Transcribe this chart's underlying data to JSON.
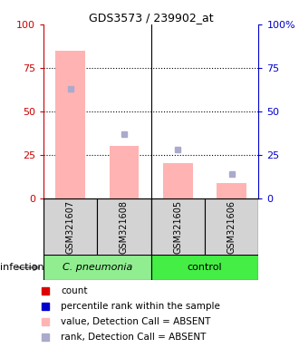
{
  "title": "GDS3573 / 239902_at",
  "samples": [
    "GSM321607",
    "GSM321608",
    "GSM321605",
    "GSM321606"
  ],
  "bar_values": [
    85,
    30,
    20,
    9
  ],
  "rank_values": [
    63,
    37,
    28,
    14
  ],
  "absent_flags": [
    true,
    true,
    true,
    true
  ],
  "bar_color_absent": "#ffb3b3",
  "bar_color_present": "#ff0000",
  "rank_color_absent": "#aaaacc",
  "rank_color_present": "#0000cc",
  "ylim": [
    0,
    100
  ],
  "yticks": [
    0,
    25,
    50,
    75,
    100
  ],
  "ytick_labels_right": [
    "0",
    "25",
    "50",
    "75",
    "100%"
  ],
  "left_axis_color": "#cc0000",
  "right_axis_color": "#0000cc",
  "group1_label": "C. pneumonia",
  "group2_label": "control",
  "group1_color": "#90ee90",
  "group2_color": "#44ee44",
  "infection_label": "infection",
  "legend_items": [
    {
      "label": "count",
      "color": "#dd0000"
    },
    {
      "label": "percentile rank within the sample",
      "color": "#0000cc"
    },
    {
      "label": "value, Detection Call = ABSENT",
      "color": "#ffb3b3"
    },
    {
      "label": "rank, Detection Call = ABSENT",
      "color": "#aaaacc"
    }
  ]
}
